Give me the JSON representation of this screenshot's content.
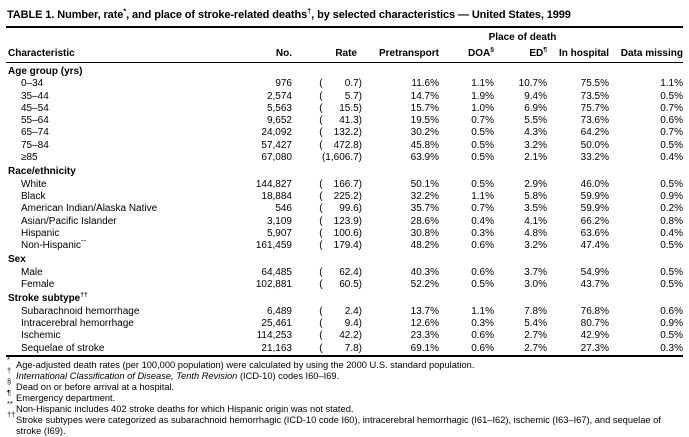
{
  "colors": {
    "background": "#ffffff",
    "text": "#000000",
    "rule": "#000000"
  },
  "title": {
    "seg1": "TABLE 1. Number, rate",
    "sup1": "*",
    "seg2": ", and place of stroke-related deaths",
    "sup2": "†",
    "seg3": ", by selected characteristics — United States, 1999"
  },
  "table": {
    "place_of_death_label": "Place of death",
    "columns": [
      {
        "label": "Characteristic",
        "sup": ""
      },
      {
        "label": "No.",
        "sup": ""
      },
      {
        "label": "Rate",
        "sup": ""
      },
      {
        "label": "Pretransport",
        "sup": ""
      },
      {
        "label": "DOA",
        "sup": "§"
      },
      {
        "label": "ED",
        "sup": "¶"
      },
      {
        "label": "In hospital",
        "sup": ""
      },
      {
        "label": "Data missing",
        "sup": ""
      }
    ],
    "sections": [
      {
        "header": "Age group (yrs)",
        "sup": "",
        "rows": [
          {
            "label": "0–34",
            "label_sup": "",
            "no": "976",
            "rate": "(    0.7)",
            "pre": "11.6%",
            "doa": "1.1%",
            "ed": "10.7%",
            "hosp": "75.5%",
            "miss": "1.1%"
          },
          {
            "label": "35–44",
            "label_sup": "",
            "no": "2,574",
            "rate": "(    5.7)",
            "pre": "14.7%",
            "doa": "1.9%",
            "ed": "9.4%",
            "hosp": "73.5%",
            "miss": "0.5%"
          },
          {
            "label": "45–54",
            "label_sup": "",
            "no": "5,563",
            "rate": "(   15.5)",
            "pre": "15.7%",
            "doa": "1.0%",
            "ed": "6.9%",
            "hosp": "75.7%",
            "miss": "0.7%"
          },
          {
            "label": "55–64",
            "label_sup": "",
            "no": "9,652",
            "rate": "(   41.3)",
            "pre": "19.5%",
            "doa": "0.7%",
            "ed": "5.5%",
            "hosp": "73.6%",
            "miss": "0.6%"
          },
          {
            "label": "65–74",
            "label_sup": "",
            "no": "24,092",
            "rate": "(  132.2)",
            "pre": "30.2%",
            "doa": "0.5%",
            "ed": "4.3%",
            "hosp": "64.2%",
            "miss": "0.7%"
          },
          {
            "label": "75–84",
            "label_sup": "",
            "no": "57,427",
            "rate": "(  472.8)",
            "pre": "45.8%",
            "doa": "0.5%",
            "ed": "3.2%",
            "hosp": "50.0%",
            "miss": "0.5%"
          },
          {
            "label": "≥85",
            "label_sup": "",
            "no": "67,080",
            "rate": "(1,606.7)",
            "pre": "63.9%",
            "doa": "0.5%",
            "ed": "2.1%",
            "hosp": "33.2%",
            "miss": "0.4%"
          }
        ]
      },
      {
        "header": "Race/ethnicity",
        "sup": "",
        "rows": [
          {
            "label": "White",
            "label_sup": "",
            "no": "144,827",
            "rate": "(  166.7)",
            "pre": "50.1%",
            "doa": "0.5%",
            "ed": "2.9%",
            "hosp": "46.0%",
            "miss": "0.5%"
          },
          {
            "label": "Black",
            "label_sup": "",
            "no": "18,884",
            "rate": "(  225.2)",
            "pre": "32.2%",
            "doa": "1.1%",
            "ed": "5.8%",
            "hosp": "59.9%",
            "miss": "0.9%"
          },
          {
            "label": "American Indian/Alaska Native",
            "label_sup": "",
            "no": "546",
            "rate": "(   99.6)",
            "pre": "35.7%",
            "doa": "0.7%",
            "ed": "3.5%",
            "hosp": "59.9%",
            "miss": "0.2%"
          },
          {
            "label": "Asian/Pacific Islander",
            "label_sup": "",
            "no": "3,109",
            "rate": "(  123.9)",
            "pre": "28.6%",
            "doa": "0.4%",
            "ed": "4.1%",
            "hosp": "66.2%",
            "miss": "0.8%"
          },
          {
            "label": "Hispanic",
            "label_sup": "",
            "no": "5,907",
            "rate": "(  100.6)",
            "pre": "30.8%",
            "doa": "0.3%",
            "ed": "4.8%",
            "hosp": "63.6%",
            "miss": "0.4%"
          },
          {
            "label": "Non-Hispanic",
            "label_sup": "**",
            "no": "161,459",
            "rate": "(  179.4)",
            "pre": "48.2%",
            "doa": "0.6%",
            "ed": "3.2%",
            "hosp": "47.4%",
            "miss": "0.5%"
          }
        ]
      },
      {
        "header": "Sex",
        "sup": "",
        "rows": [
          {
            "label": "Male",
            "label_sup": "",
            "no": "64,485",
            "rate": "(   62.4)",
            "pre": "40.3%",
            "doa": "0.6%",
            "ed": "3.7%",
            "hosp": "54.9%",
            "miss": "0.5%"
          },
          {
            "label": "Female",
            "label_sup": "",
            "no": "102,881",
            "rate": "(   60.5)",
            "pre": "52.2%",
            "doa": "0.5%",
            "ed": "3.0%",
            "hosp": "43.7%",
            "miss": "0.5%"
          }
        ]
      },
      {
        "header": "Stroke subtype",
        "sup": "††",
        "rows": [
          {
            "label": "Subarachnoid hemorrhage",
            "label_sup": "",
            "no": "6,489",
            "rate": "(    2.4)",
            "pre": "13.7%",
            "doa": "1.1%",
            "ed": "7.8%",
            "hosp": "76.8%",
            "miss": "0.6%"
          },
          {
            "label": "Intracerebral hemorrhage",
            "label_sup": "",
            "no": "25,461",
            "rate": "(    9.4)",
            "pre": "12.6%",
            "doa": "0.3%",
            "ed": "5.4%",
            "hosp": "80.7%",
            "miss": "0.9%"
          },
          {
            "label": "Ischemic",
            "label_sup": "",
            "no": "114,253",
            "rate": "(   42.2)",
            "pre": "23.3%",
            "doa": "0.6%",
            "ed": "2.7%",
            "hosp": "42.9%",
            "miss": "0.5%"
          },
          {
            "label": "Sequelae of stroke",
            "label_sup": "",
            "no": "21,163",
            "rate": "(    7.8)",
            "pre": "69.1%",
            "doa": "0.6%",
            "ed": "2.7%",
            "hosp": "27.3%",
            "miss": "0.3%"
          }
        ]
      }
    ]
  },
  "footnotes": [
    {
      "marker": "*",
      "italic": "",
      "text": "Age-adjusted death rates (per 100,000 population) were calculated by using the 2000 U.S. standard population."
    },
    {
      "marker": "†",
      "italic": "International Classification of Disease, Tenth Revision",
      "text": " (ICD-10) codes I60–I69."
    },
    {
      "marker": "§",
      "italic": "",
      "text": "Dead on or before arrival at a hospital."
    },
    {
      "marker": "¶",
      "italic": "",
      "text": "Emergency department."
    },
    {
      "marker": "**",
      "italic": "",
      "text": "Non-Hispanic includes 402 stroke deaths for which Hispanic origin was not stated."
    },
    {
      "marker": "††",
      "italic": "",
      "text": "Stroke subtypes were categorized as subarachnoid hemorrhagic (ICD-10 code I60), intracerebral hemorrhagic (I61–I62), ischemic (I63–I67), and sequelae of stroke (I69)."
    }
  ]
}
